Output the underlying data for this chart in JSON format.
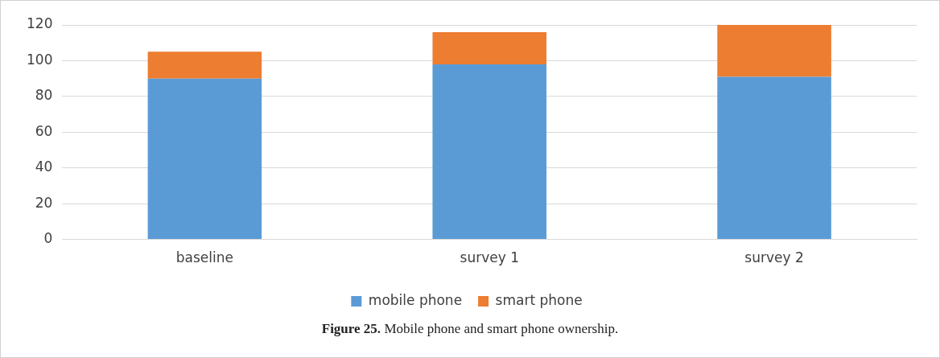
{
  "chart_data": {
    "type": "bar",
    "stacked": true,
    "categories": [
      "baseline",
      "survey 1",
      "survey 2"
    ],
    "series": [
      {
        "name": "mobile phone",
        "color": "#5b9bd5",
        "values": [
          90,
          98,
          91
        ]
      },
      {
        "name": "smart phone",
        "color": "#ed7d31",
        "values": [
          15,
          18,
          29
        ]
      }
    ],
    "ylim": [
      0,
      120
    ],
    "yticks": [
      0,
      20,
      40,
      60,
      80,
      100,
      120
    ],
    "grid": "y",
    "legend": "bottom",
    "annotations": [
      "Figure 25. Mobile phone and smart phone ownership."
    ]
  }
}
